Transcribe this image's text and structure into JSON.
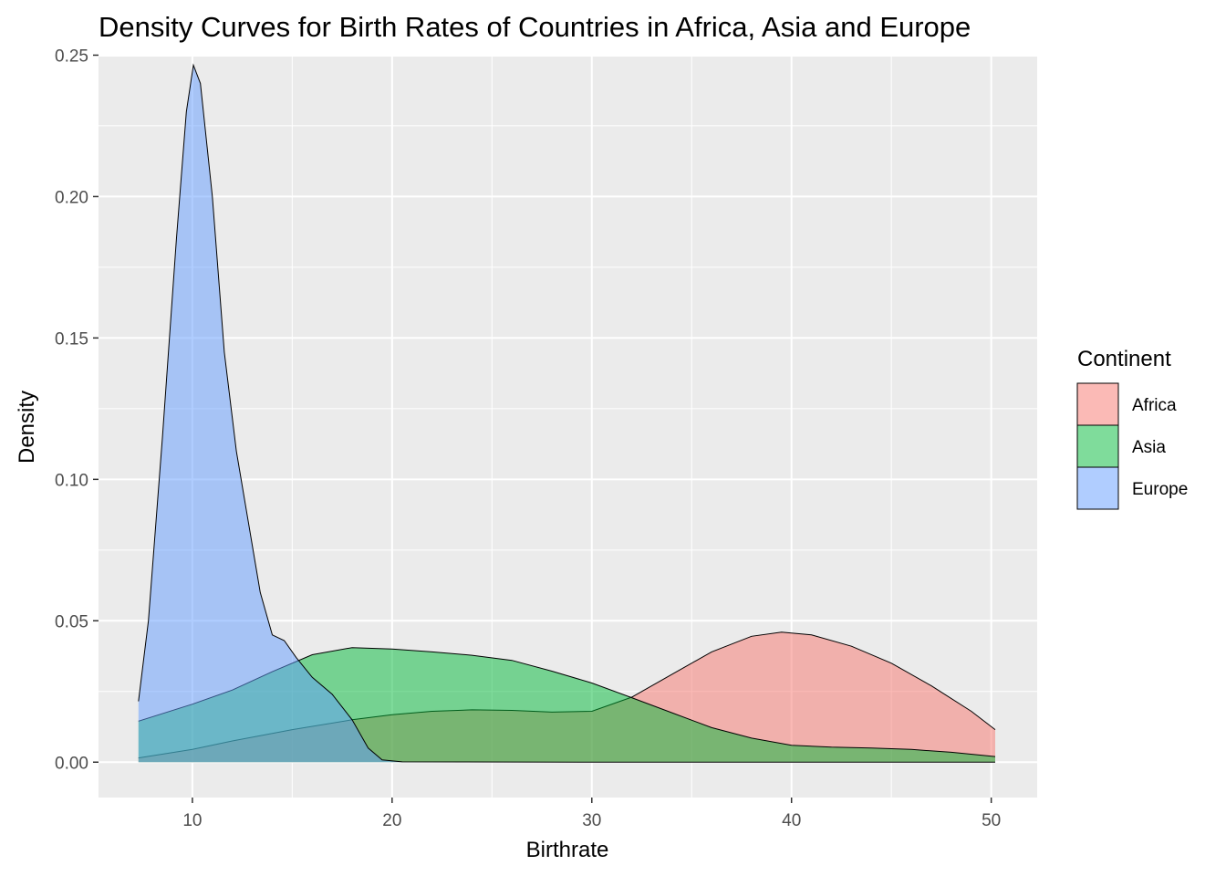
{
  "chart_data": {
    "type": "area",
    "title": "Density Curves for Birth Rates of Countries in Africa, Asia and Europe",
    "xlabel": "Birthrate",
    "ylabel": "Density",
    "xlim": [
      5.3,
      52.3
    ],
    "ylim": [
      -0.0125,
      0.2495
    ],
    "x_ticks": [
      10,
      20,
      30,
      40,
      50
    ],
    "x_tick_labels": [
      "10",
      "20",
      "30",
      "40",
      "50"
    ],
    "y_ticks": [
      0,
      0.05,
      0.1,
      0.15,
      0.2,
      0.25
    ],
    "y_tick_labels": [
      "0.00",
      "0.05",
      "0.10",
      "0.15",
      "0.20",
      "0.25"
    ],
    "grid": true,
    "legend": {
      "title": "Continent",
      "position": "right"
    },
    "series": [
      {
        "name": "Africa",
        "color": "#F8766D",
        "points": [
          [
            7.3,
            0.0015
          ],
          [
            10,
            0.0045
          ],
          [
            12,
            0.0075
          ],
          [
            15,
            0.0115
          ],
          [
            18,
            0.015
          ],
          [
            20,
            0.0168
          ],
          [
            22,
            0.018
          ],
          [
            24,
            0.0185
          ],
          [
            26,
            0.0183
          ],
          [
            28,
            0.0177
          ],
          [
            30,
            0.018
          ],
          [
            32,
            0.023
          ],
          [
            34,
            0.031
          ],
          [
            36,
            0.039
          ],
          [
            38,
            0.0445
          ],
          [
            39.5,
            0.046
          ],
          [
            41,
            0.045
          ],
          [
            43,
            0.041
          ],
          [
            45,
            0.035
          ],
          [
            47,
            0.027
          ],
          [
            49,
            0.018
          ],
          [
            50.2,
            0.0115
          ]
        ]
      },
      {
        "name": "Asia",
        "color": "#00BA38",
        "points": [
          [
            7.3,
            0.0145
          ],
          [
            10,
            0.0205
          ],
          [
            12,
            0.0255
          ],
          [
            14,
            0.032
          ],
          [
            16,
            0.038
          ],
          [
            18,
            0.0405
          ],
          [
            20,
            0.04
          ],
          [
            22,
            0.039
          ],
          [
            24,
            0.0378
          ],
          [
            26,
            0.036
          ],
          [
            28,
            0.0322
          ],
          [
            30,
            0.028
          ],
          [
            32,
            0.0228
          ],
          [
            34,
            0.0175
          ],
          [
            36,
            0.0122
          ],
          [
            38,
            0.0085
          ],
          [
            40,
            0.006
          ],
          [
            42,
            0.0053
          ],
          [
            44,
            0.005
          ],
          [
            46,
            0.0045
          ],
          [
            48,
            0.0035
          ],
          [
            50.2,
            0.002
          ]
        ]
      },
      {
        "name": "Europe",
        "color": "#619CFF",
        "points": [
          [
            7.3,
            0.0215
          ],
          [
            7.8,
            0.05
          ],
          [
            8.5,
            0.115
          ],
          [
            9.2,
            0.185
          ],
          [
            9.7,
            0.23
          ],
          [
            10.05,
            0.2465
          ],
          [
            10.4,
            0.24
          ],
          [
            11,
            0.2
          ],
          [
            11.6,
            0.145
          ],
          [
            12.2,
            0.11
          ],
          [
            12.8,
            0.085
          ],
          [
            13.4,
            0.06
          ],
          [
            14,
            0.045
          ],
          [
            14.6,
            0.043
          ],
          [
            15.2,
            0.037
          ],
          [
            16,
            0.03
          ],
          [
            17,
            0.024
          ],
          [
            18,
            0.015
          ],
          [
            18.8,
            0.005
          ],
          [
            19.5,
            0.0008
          ],
          [
            20.5,
            0.0001
          ],
          [
            30,
            0.0
          ],
          [
            50.2,
            0.0
          ]
        ]
      }
    ]
  }
}
